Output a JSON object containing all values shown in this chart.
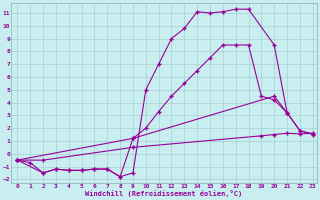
{
  "xlabel": "Windchill (Refroidissement éolien,°C)",
  "background_color": "#c8eef0",
  "line_color": "#990099",
  "xlim": [
    -0.5,
    23.3
  ],
  "ylim": [
    -2.3,
    11.8
  ],
  "yticks": [
    -2,
    -1,
    0,
    1,
    2,
    3,
    4,
    5,
    6,
    7,
    8,
    9,
    10,
    11
  ],
  "xticks": [
    0,
    1,
    2,
    3,
    4,
    5,
    6,
    7,
    8,
    9,
    10,
    11,
    12,
    13,
    14,
    15,
    16,
    17,
    18,
    19,
    20,
    21,
    22,
    23
  ],
  "line1_x": [
    0,
    1,
    2,
    3,
    4,
    5,
    6,
    7,
    8,
    9,
    10,
    11,
    12,
    13,
    14,
    15,
    16,
    17,
    18,
    20,
    21
  ],
  "line1_y": [
    -0.5,
    -0.7,
    -1.5,
    -1.2,
    -1.3,
    -1.3,
    -1.2,
    -1.2,
    -1.8,
    -1.5,
    5.0,
    7.0,
    9.0,
    9.8,
    11.1,
    11.0,
    11.1,
    11.3,
    11.3,
    8.5,
    3.2
  ],
  "line2_x": [
    0,
    2,
    3,
    4,
    5,
    6,
    7,
    8,
    9,
    10,
    11,
    12,
    13,
    14,
    15,
    16,
    17,
    18,
    19,
    20,
    21,
    22,
    23
  ],
  "line2_y": [
    -0.5,
    -1.5,
    -1.2,
    -1.3,
    -1.3,
    -1.2,
    -1.2,
    -1.8,
    1.2,
    2.0,
    3.3,
    4.5,
    5.5,
    6.5,
    7.5,
    8.5,
    8.5,
    8.5,
    4.5,
    4.2,
    3.2,
    1.8,
    1.5
  ],
  "line3_x": [
    0,
    2,
    9,
    19,
    20,
    21,
    22,
    23
  ],
  "line3_y": [
    -0.5,
    -0.5,
    0.5,
    1.4,
    1.5,
    1.6,
    1.55,
    1.6
  ],
  "line4_x": [
    0,
    9,
    20,
    21,
    22,
    23
  ],
  "line4_y": [
    -0.5,
    1.2,
    4.5,
    3.2,
    1.8,
    1.55
  ]
}
